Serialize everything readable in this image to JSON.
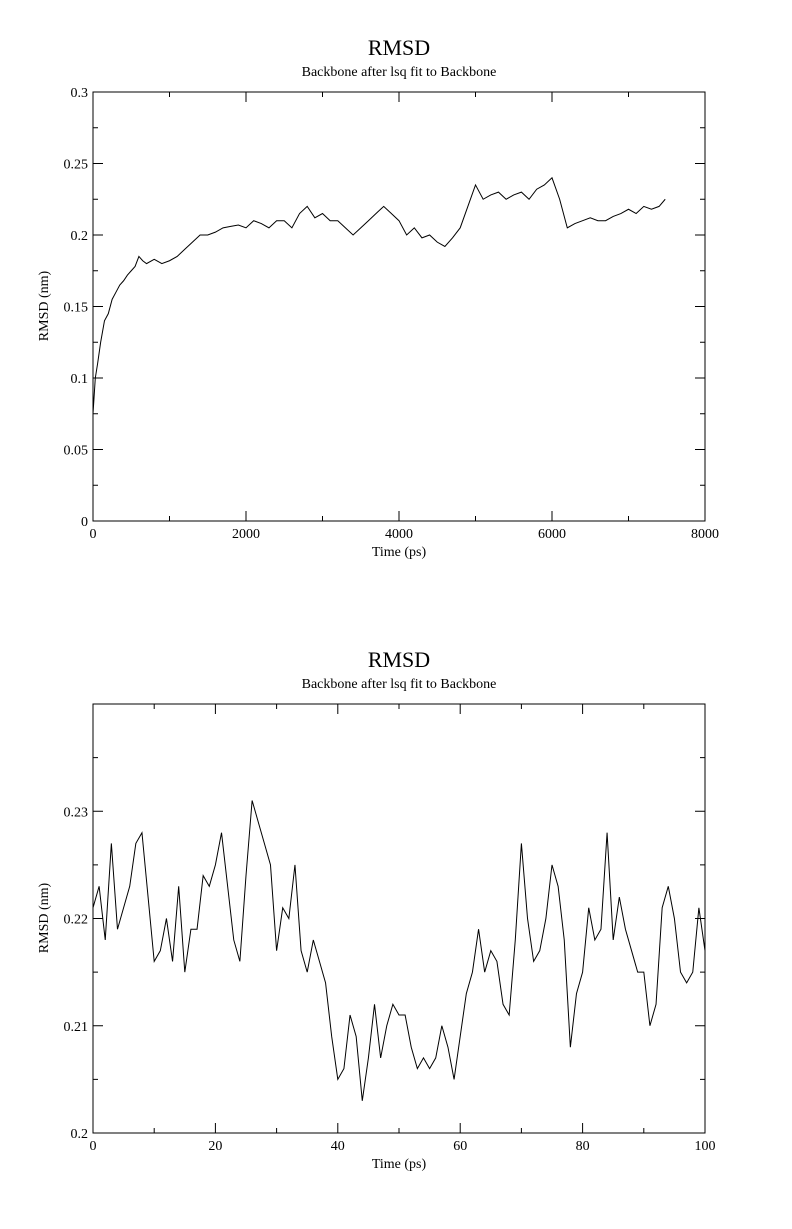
{
  "chart_data": [
    {
      "type": "line",
      "title": "RMSD",
      "subtitle": "Backbone after lsq fit to Backbone",
      "xlabel": "Time (ps)",
      "ylabel": "RMSD (nm)",
      "xlim": [
        0,
        8000
      ],
      "ylim": [
        0,
        0.3
      ],
      "grid": false,
      "x_ticks": [
        0,
        2000,
        4000,
        6000,
        8000
      ],
      "x_tick_labels": [
        "0",
        "2000",
        "4000",
        "6000",
        "8000"
      ],
      "y_ticks": [
        0,
        0.05,
        0.1,
        0.15,
        0.2,
        0.25,
        0.3
      ],
      "y_tick_labels": [
        "0",
        "0.05",
        "0.1",
        "0.15",
        "0.2",
        "0.25",
        "0.3"
      ],
      "series": [
        {
          "x": [
            0,
            30,
            60,
            100,
            150,
            200,
            250,
            300,
            350,
            400,
            450,
            500,
            550,
            600,
            650,
            700,
            800,
            900,
            1000,
            1100,
            1200,
            1300,
            1400,
            1500,
            1600,
            1700,
            1800,
            1900,
            2000,
            2100,
            2200,
            2300,
            2400,
            2500,
            2600,
            2700,
            2800,
            2900,
            3000,
            3100,
            3200,
            3300,
            3400,
            3500,
            3600,
            3700,
            3800,
            3900,
            4000,
            4100,
            4200,
            4300,
            4400,
            4500,
            4600,
            4700,
            4800,
            4900,
            5000,
            5100,
            5200,
            5300,
            5400,
            5500,
            5600,
            5700,
            5800,
            5900,
            6000,
            6100,
            6200,
            6300,
            6400,
            6500,
            6600,
            6700,
            6800,
            6900,
            7000,
            7100,
            7200,
            7300,
            7400,
            7480
          ],
          "y": [
            0.075,
            0.1,
            0.11,
            0.125,
            0.14,
            0.145,
            0.155,
            0.16,
            0.165,
            0.168,
            0.172,
            0.175,
            0.178,
            0.185,
            0.182,
            0.18,
            0.183,
            0.18,
            0.182,
            0.185,
            0.19,
            0.195,
            0.2,
            0.2,
            0.202,
            0.205,
            0.206,
            0.207,
            0.205,
            0.21,
            0.208,
            0.205,
            0.21,
            0.21,
            0.205,
            0.215,
            0.22,
            0.212,
            0.215,
            0.21,
            0.21,
            0.205,
            0.2,
            0.205,
            0.21,
            0.215,
            0.22,
            0.215,
            0.21,
            0.2,
            0.205,
            0.198,
            0.2,
            0.195,
            0.192,
            0.198,
            0.205,
            0.22,
            0.235,
            0.225,
            0.228,
            0.23,
            0.225,
            0.228,
            0.23,
            0.225,
            0.232,
            0.235,
            0.24,
            0.225,
            0.205,
            0.208,
            0.21,
            0.212,
            0.21,
            0.21,
            0.213,
            0.215,
            0.218,
            0.215,
            0.22,
            0.218,
            0.22,
            0.225
          ]
        }
      ]
    },
    {
      "type": "line",
      "title": "RMSD",
      "subtitle": "Backbone after lsq fit to Backbone",
      "xlabel": "Time (ps)",
      "ylabel": "RMSD (nm)",
      "xlim": [
        0,
        100
      ],
      "ylim": [
        0.2,
        0.24
      ],
      "grid": false,
      "x_ticks": [
        0,
        20,
        40,
        60,
        80,
        100
      ],
      "x_tick_labels": [
        "0",
        "20",
        "40",
        "60",
        "80",
        "100"
      ],
      "y_ticks": [
        0.2,
        0.21,
        0.22,
        0.23
      ],
      "y_tick_labels": [
        "0.2",
        "0.21",
        "0.22",
        "0.23"
      ],
      "series": [
        {
          "x": [
            0,
            1,
            2,
            3,
            4,
            5,
            6,
            7,
            8,
            9,
            10,
            11,
            12,
            13,
            14,
            15,
            16,
            17,
            18,
            19,
            20,
            21,
            22,
            23,
            24,
            25,
            26,
            27,
            28,
            29,
            30,
            31,
            32,
            33,
            34,
            35,
            36,
            37,
            38,
            39,
            40,
            41,
            42,
            43,
            44,
            45,
            46,
            47,
            48,
            49,
            50,
            51,
            52,
            53,
            54,
            55,
            56,
            57,
            58,
            59,
            60,
            61,
            62,
            63,
            64,
            65,
            66,
            67,
            68,
            69,
            70,
            71,
            72,
            73,
            74,
            75,
            76,
            77,
            78,
            79,
            80,
            81,
            82,
            83,
            84,
            85,
            86,
            87,
            88,
            89,
            90,
            91,
            92,
            93,
            94,
            95,
            96,
            97,
            98,
            99,
            100
          ],
          "y": [
            0.221,
            0.223,
            0.218,
            0.227,
            0.219,
            0.221,
            0.223,
            0.227,
            0.228,
            0.222,
            0.216,
            0.217,
            0.22,
            0.216,
            0.223,
            0.215,
            0.219,
            0.219,
            0.224,
            0.223,
            0.225,
            0.228,
            0.223,
            0.218,
            0.216,
            0.224,
            0.231,
            0.229,
            0.227,
            0.225,
            0.217,
            0.221,
            0.22,
            0.225,
            0.217,
            0.215,
            0.218,
            0.216,
            0.214,
            0.209,
            0.205,
            0.206,
            0.211,
            0.209,
            0.203,
            0.207,
            0.212,
            0.207,
            0.21,
            0.212,
            0.211,
            0.211,
            0.208,
            0.206,
            0.207,
            0.206,
            0.207,
            0.21,
            0.208,
            0.205,
            0.209,
            0.213,
            0.215,
            0.219,
            0.215,
            0.217,
            0.216,
            0.212,
            0.211,
            0.218,
            0.227,
            0.22,
            0.216,
            0.217,
            0.22,
            0.225,
            0.223,
            0.218,
            0.208,
            0.213,
            0.215,
            0.221,
            0.218,
            0.219,
            0.228,
            0.218,
            0.222,
            0.219,
            0.217,
            0.215,
            0.215,
            0.21,
            0.212,
            0.221,
            0.223,
            0.22,
            0.215,
            0.214,
            0.215,
            0.221,
            0.217
          ]
        }
      ]
    }
  ]
}
